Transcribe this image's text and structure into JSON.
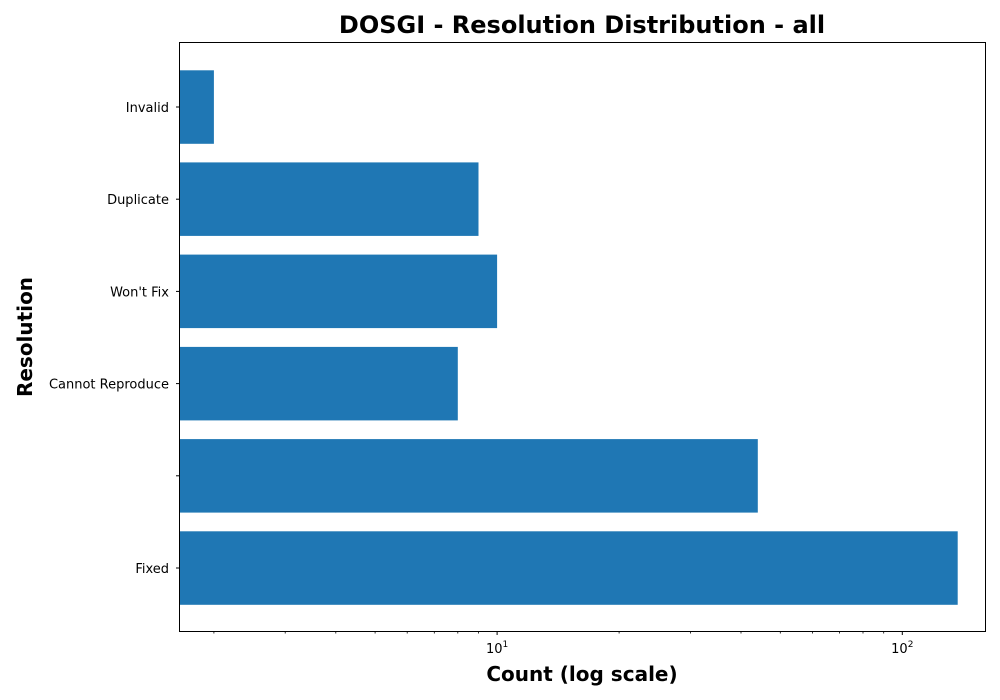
{
  "chart_data": {
    "type": "bar",
    "orientation": "horizontal",
    "title": "DOSGI - Resolution Distribution - all",
    "xlabel": "Count (log scale)",
    "ylabel": "Resolution",
    "x_scale": "log",
    "xlim": [
      1.65,
      160
    ],
    "x_major_ticks": [
      10,
      100
    ],
    "x_major_tick_labels": [
      "10",
      "10"
    ],
    "x_major_tick_exponents": [
      "1",
      "2"
    ],
    "categories": [
      "Fixed",
      "",
      "Cannot Reproduce",
      "Won't Fix",
      "Duplicate",
      "Invalid"
    ],
    "values": [
      137,
      44,
      8,
      10,
      9,
      2
    ],
    "bar_color": "#1f77b4",
    "grid": false,
    "legend": "none"
  }
}
